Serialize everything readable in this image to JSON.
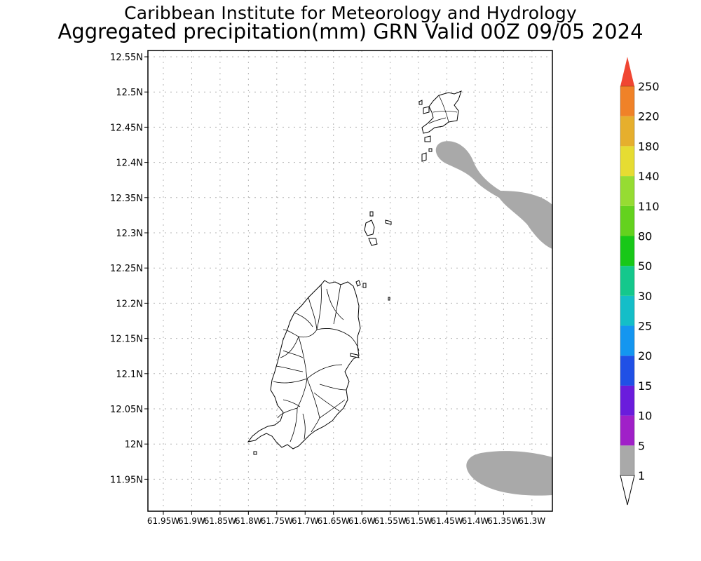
{
  "title": {
    "line1": "Caribbean Institute for Meteorology and Hydrology",
    "line2": "Aggregated precipitation(mm) GRN Valid 00Z 09/05 2024"
  },
  "map": {
    "lat_labels": [
      "12.55N",
      "12.5N",
      "12.45N",
      "12.4N",
      "12.35N",
      "12.3N",
      "12.25N",
      "12.2N",
      "12.15N",
      "12.1N",
      "12.05N",
      "12N",
      "11.95N"
    ],
    "lon_labels": [
      "61.95W",
      "61.9W",
      "61.85W",
      "61.8W",
      "61.75W",
      "61.7W",
      "61.65W",
      "61.6W",
      "61.55W",
      "61.5W",
      "61.45W",
      "61.4W",
      "61.35W",
      "61.3W"
    ],
    "extent": {
      "lon": [
        -61.97,
        -61.27
      ],
      "lat": [
        11.905,
        12.56
      ]
    },
    "grid": true,
    "precip_fill_color": "#a9a9a9"
  },
  "colorbar": {
    "levels": [
      "1",
      "5",
      "10",
      "15",
      "20",
      "25",
      "30",
      "50",
      "80",
      "110",
      "140",
      "180",
      "220",
      "250"
    ],
    "colors": [
      "#a9a9a9",
      "#a020c8",
      "#6a1cdc",
      "#2050e6",
      "#1496f0",
      "#14bec8",
      "#14c88c",
      "#18c818",
      "#64d21e",
      "#96dc32",
      "#e6dc32",
      "#e6af2d",
      "#f08228",
      "#f04632",
      "#dc147c"
    ]
  }
}
